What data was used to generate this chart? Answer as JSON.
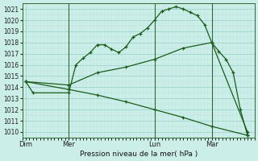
{
  "background_color": "#cceee8",
  "grid_major_color": "#99cccc",
  "grid_minor_color": "#b8e0dc",
  "line_color": "#1a5c1a",
  "title": "Pression niveau de la mer( hPa )",
  "ylim": [
    1009.5,
    1021.5
  ],
  "yticks": [
    1010,
    1011,
    1012,
    1013,
    1014,
    1015,
    1016,
    1017,
    1018,
    1019,
    1020,
    1021
  ],
  "xtick_labels": [
    "Dim",
    "Mer",
    "Lun",
    "Mar"
  ],
  "xtick_positions": [
    0,
    6,
    18,
    26
  ],
  "xlim": [
    -0.5,
    32
  ],
  "vlines_x": [
    6,
    18,
    26
  ],
  "series1_x": [
    0,
    1,
    6,
    7,
    8,
    9,
    10,
    11,
    12,
    13,
    14,
    15,
    16,
    17,
    18,
    19,
    20,
    21,
    22,
    23,
    24,
    25,
    26,
    27,
    28,
    29,
    30,
    31
  ],
  "series1_y": [
    1014.5,
    1013.5,
    1013.5,
    1016.0,
    1016.6,
    1017.1,
    1017.8,
    1017.8,
    1017.4,
    1017.1,
    1017.6,
    1018.5,
    1018.8,
    1019.3,
    1020.0,
    1020.8,
    1021.0,
    1021.2,
    1021.0,
    1020.7,
    1020.4,
    1019.6,
    1018.0,
    1017.2,
    1016.5,
    1015.3,
    1012.0,
    1009.7
  ],
  "series2_x": [
    0,
    6,
    10,
    14,
    18,
    22,
    26,
    31
  ],
  "series2_y": [
    1014.5,
    1014.2,
    1015.3,
    1015.8,
    1016.5,
    1017.5,
    1018.0,
    1010.0
  ],
  "series3_x": [
    0,
    6,
    10,
    14,
    18,
    22,
    26,
    31
  ],
  "series3_y": [
    1014.5,
    1013.8,
    1013.3,
    1012.7,
    1012.0,
    1011.3,
    1010.5,
    1009.7
  ],
  "marker_size": 3.5,
  "linewidth": 0.9
}
